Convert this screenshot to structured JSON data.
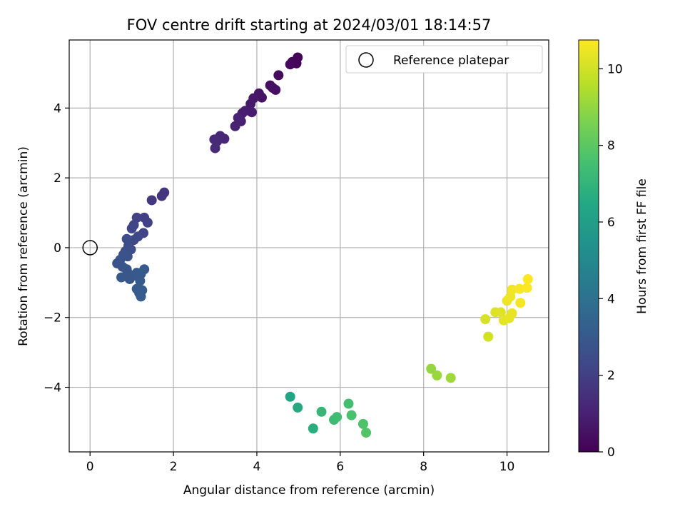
{
  "chart_data": {
    "type": "scatter",
    "title": "FOV centre drift starting at 2024/03/01 18:14:57",
    "xlabel": "Angular distance from reference (arcmin)",
    "ylabel": "Rotation from reference (arcmin)",
    "xlim": [
      -0.5,
      11.0
    ],
    "ylim": [
      -5.85,
      5.95
    ],
    "xticks": [
      0,
      2,
      4,
      6,
      8,
      10
    ],
    "yticks": [
      -4,
      -2,
      0,
      2,
      4
    ],
    "grid": true,
    "legend": {
      "placement": "upper right",
      "entries": [
        "Reference platepar"
      ]
    },
    "reference_point": {
      "x": 0,
      "y": 0,
      "label": "Reference platepar"
    },
    "colorbar": {
      "label": "Hours from first FF file",
      "colormap": "viridis",
      "range": [
        0,
        10.75
      ],
      "ticks": [
        0,
        2,
        4,
        6,
        8,
        10
      ]
    },
    "points": [
      {
        "x": 4.98,
        "y": 5.45,
        "c": 0.05
      },
      {
        "x": 4.95,
        "y": 5.28,
        "c": 0.1
      },
      {
        "x": 4.85,
        "y": 5.32,
        "c": 0.15
      },
      {
        "x": 4.8,
        "y": 5.25,
        "c": 0.2
      },
      {
        "x": 4.52,
        "y": 4.94,
        "c": 0.3
      },
      {
        "x": 4.32,
        "y": 4.65,
        "c": 0.4
      },
      {
        "x": 4.45,
        "y": 4.52,
        "c": 0.45
      },
      {
        "x": 4.38,
        "y": 4.58,
        "c": 0.5
      },
      {
        "x": 4.12,
        "y": 4.3,
        "c": 0.55
      },
      {
        "x": 4.05,
        "y": 4.42,
        "c": 0.6
      },
      {
        "x": 3.92,
        "y": 4.28,
        "c": 0.7
      },
      {
        "x": 3.85,
        "y": 4.12,
        "c": 0.75
      },
      {
        "x": 3.88,
        "y": 3.88,
        "c": 0.8
      },
      {
        "x": 3.72,
        "y": 3.92,
        "c": 0.85
      },
      {
        "x": 3.65,
        "y": 3.85,
        "c": 0.9
      },
      {
        "x": 3.62,
        "y": 3.62,
        "c": 0.95
      },
      {
        "x": 3.55,
        "y": 3.72,
        "c": 1.0
      },
      {
        "x": 3.48,
        "y": 3.48,
        "c": 1.05
      },
      {
        "x": 3.22,
        "y": 3.12,
        "c": 1.1
      },
      {
        "x": 3.12,
        "y": 3.2,
        "c": 1.15
      },
      {
        "x": 3.05,
        "y": 3.05,
        "c": 1.2
      },
      {
        "x": 2.98,
        "y": 3.1,
        "c": 1.25
      },
      {
        "x": 3.0,
        "y": 2.85,
        "c": 1.3
      },
      {
        "x": 1.78,
        "y": 1.58,
        "c": 1.6
      },
      {
        "x": 1.72,
        "y": 1.48,
        "c": 1.65
      },
      {
        "x": 1.48,
        "y": 1.36,
        "c": 1.75
      },
      {
        "x": 1.3,
        "y": 0.86,
        "c": 2.0
      },
      {
        "x": 1.38,
        "y": 0.72,
        "c": 2.05
      },
      {
        "x": 1.12,
        "y": 0.86,
        "c": 2.1
      },
      {
        "x": 1.28,
        "y": 0.42,
        "c": 2.15
      },
      {
        "x": 1.05,
        "y": 0.65,
        "c": 2.2
      },
      {
        "x": 1.0,
        "y": 0.55,
        "c": 2.25
      },
      {
        "x": 1.15,
        "y": 0.32,
        "c": 2.3
      },
      {
        "x": 1.05,
        "y": 0.22,
        "c": 2.35
      },
      {
        "x": 0.95,
        "y": 0.18,
        "c": 2.4
      },
      {
        "x": 0.88,
        "y": 0.25,
        "c": 2.45
      },
      {
        "x": 0.92,
        "y": 0.05,
        "c": 2.5
      },
      {
        "x": 0.98,
        "y": -0.05,
        "c": 2.55
      },
      {
        "x": 0.85,
        "y": -0.1,
        "c": 2.6
      },
      {
        "x": 0.9,
        "y": -0.25,
        "c": 2.65
      },
      {
        "x": 0.8,
        "y": -0.2,
        "c": 2.7
      },
      {
        "x": 0.72,
        "y": -0.35,
        "c": 2.75
      },
      {
        "x": 0.65,
        "y": -0.45,
        "c": 2.8
      },
      {
        "x": 0.78,
        "y": -0.55,
        "c": 2.8
      },
      {
        "x": 0.88,
        "y": -0.62,
        "c": 2.85
      },
      {
        "x": 0.92,
        "y": -0.75,
        "c": 2.85
      },
      {
        "x": 0.85,
        "y": -0.82,
        "c": 2.9
      },
      {
        "x": 0.95,
        "y": -0.9,
        "c": 2.9
      },
      {
        "x": 0.75,
        "y": -0.85,
        "c": 2.95
      },
      {
        "x": 1.05,
        "y": -0.8,
        "c": 2.95
      },
      {
        "x": 1.12,
        "y": -0.72,
        "c": 3.0
      },
      {
        "x": 1.22,
        "y": -0.75,
        "c": 3.0
      },
      {
        "x": 1.3,
        "y": -0.62,
        "c": 3.05
      },
      {
        "x": 1.2,
        "y": -0.95,
        "c": 3.05
      },
      {
        "x": 1.12,
        "y": -1.18,
        "c": 3.1
      },
      {
        "x": 1.25,
        "y": -1.22,
        "c": 3.1
      },
      {
        "x": 1.18,
        "y": -1.3,
        "c": 3.15
      },
      {
        "x": 1.22,
        "y": -1.4,
        "c": 3.15
      },
      {
        "x": 4.8,
        "y": -4.27,
        "c": 6.3
      },
      {
        "x": 4.98,
        "y": -4.58,
        "c": 6.5
      },
      {
        "x": 5.35,
        "y": -5.18,
        "c": 6.7
      },
      {
        "x": 5.55,
        "y": -4.7,
        "c": 7.1
      },
      {
        "x": 5.85,
        "y": -4.93,
        "c": 7.3
      },
      {
        "x": 5.92,
        "y": -4.85,
        "c": 7.4
      },
      {
        "x": 6.2,
        "y": -4.47,
        "c": 7.5
      },
      {
        "x": 6.27,
        "y": -4.8,
        "c": 7.6
      },
      {
        "x": 6.55,
        "y": -5.05,
        "c": 7.7
      },
      {
        "x": 6.62,
        "y": -5.3,
        "c": 7.8
      },
      {
        "x": 8.18,
        "y": -3.47,
        "c": 9.0
      },
      {
        "x": 8.32,
        "y": -3.66,
        "c": 9.1
      },
      {
        "x": 8.65,
        "y": -3.73,
        "c": 9.2
      },
      {
        "x": 9.55,
        "y": -2.55,
        "c": 10.0
      },
      {
        "x": 9.48,
        "y": -2.05,
        "c": 10.1
      },
      {
        "x": 9.72,
        "y": -1.85,
        "c": 10.2
      },
      {
        "x": 9.85,
        "y": -1.85,
        "c": 10.25
      },
      {
        "x": 9.92,
        "y": -2.08,
        "c": 10.3
      },
      {
        "x": 10.05,
        "y": -2.02,
        "c": 10.35
      },
      {
        "x": 10.12,
        "y": -1.88,
        "c": 10.4
      },
      {
        "x": 10.0,
        "y": -1.52,
        "c": 10.45
      },
      {
        "x": 10.08,
        "y": -1.4,
        "c": 10.5
      },
      {
        "x": 10.12,
        "y": -1.2,
        "c": 10.55
      },
      {
        "x": 10.32,
        "y": -1.58,
        "c": 10.6
      },
      {
        "x": 10.3,
        "y": -1.18,
        "c": 10.65
      },
      {
        "x": 10.48,
        "y": -1.15,
        "c": 10.7
      },
      {
        "x": 10.5,
        "y": -0.9,
        "c": 10.75
      }
    ]
  }
}
